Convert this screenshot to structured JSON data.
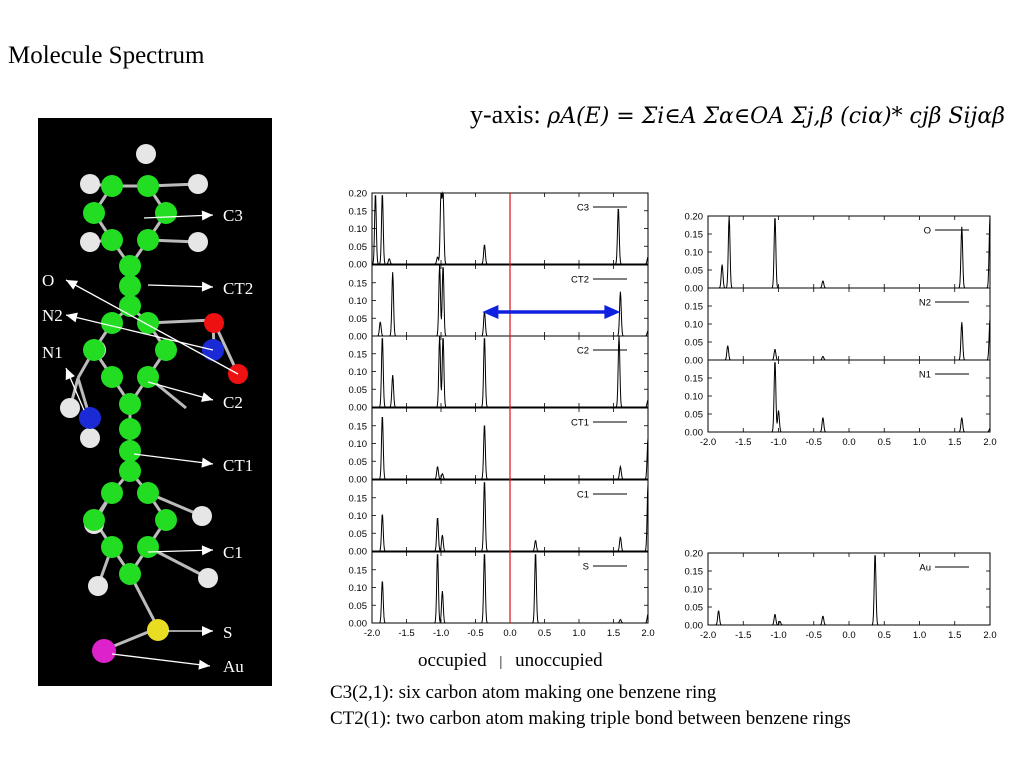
{
  "page_title": "Molecule Spectrum",
  "formula": {
    "label": "y-axis:",
    "expression": "ρA(E) = Σi∈A Σα∈OA Σj,β (ciα)* cjβ Sijαβ"
  },
  "molecule": {
    "labels": [
      "C3",
      "O",
      "CT2",
      "N2",
      "N1",
      "C2",
      "CT1",
      "C1",
      "S",
      "Au"
    ]
  },
  "occupancy": {
    "occupied": "occupied",
    "separator": "|",
    "unoccupied": "unoccupied"
  },
  "captions": [
    "C3(2,1): six carbon atom making one benzene ring",
    "CT2(1): two carbon atom making triple bond between benzene rings"
  ],
  "colors": {
    "carbon": "#22dd22",
    "hydrogen": "#e6e6e6",
    "oxygen": "#ee1111",
    "nitrogen": "#1a2bd6",
    "sulfur": "#e8dd22",
    "gold": "#dd22cc",
    "fermi_line": "#e01010",
    "gap_arrow": "#1020e0"
  },
  "chart_data": {
    "type": "line",
    "xlim": [
      -2.0,
      2.0
    ],
    "x_ticks": [
      "-2.0",
      "-1.5",
      "-1.0",
      "-0.5",
      "0.0",
      "0.5",
      "1.0",
      "1.5",
      "2.0"
    ],
    "ylim": [
      0.0,
      0.2
    ],
    "y_ticks": [
      "0.00",
      "0.05",
      "0.10",
      "0.15",
      "0.20"
    ],
    "fermi_level": 0.0,
    "gap_arrow": [
      -0.4,
      1.6
    ],
    "panels": [
      {
        "name": "C3",
        "column": "left",
        "peaks": [
          [
            -1.95,
            0.2
          ],
          [
            -1.85,
            0.2
          ],
          [
            -1.75,
            0.015
          ],
          [
            -1.05,
            0.02
          ],
          [
            -1.0,
            0.2
          ],
          [
            -0.97,
            0.2
          ],
          [
            -0.37,
            0.055
          ],
          [
            1.57,
            0.16
          ],
          [
            2.0,
            0.02
          ]
        ]
      },
      {
        "name": "CT2",
        "column": "left",
        "peaks": [
          [
            -1.88,
            0.04
          ],
          [
            -1.7,
            0.18
          ],
          [
            -1.02,
            0.2
          ],
          [
            -0.97,
            0.2
          ],
          [
            -0.37,
            0.07
          ],
          [
            1.6,
            0.125
          ],
          [
            2.0,
            0.015
          ]
        ]
      },
      {
        "name": "C2",
        "column": "left",
        "peaks": [
          [
            -1.85,
            0.2
          ],
          [
            -1.7,
            0.09
          ],
          [
            -1.02,
            0.2
          ],
          [
            -0.97,
            0.2
          ],
          [
            -0.37,
            0.2
          ],
          [
            1.58,
            0.2
          ],
          [
            2.0,
            0.02
          ]
        ]
      },
      {
        "name": "CT1",
        "column": "left",
        "peaks": [
          [
            -1.85,
            0.18
          ],
          [
            -1.05,
            0.035
          ],
          [
            -0.98,
            0.015
          ],
          [
            -0.37,
            0.155
          ],
          [
            1.6,
            0.035
          ],
          [
            2.0,
            0.115
          ]
        ]
      },
      {
        "name": "C1",
        "column": "left",
        "peaks": [
          [
            -1.85,
            0.105
          ],
          [
            -1.05,
            0.095
          ],
          [
            -0.98,
            0.045
          ],
          [
            -0.37,
            0.2
          ],
          [
            0.37,
            0.03
          ],
          [
            1.6,
            0.04
          ],
          [
            2.0,
            0.19
          ]
        ]
      },
      {
        "name": "S",
        "column": "left",
        "peaks": [
          [
            -1.85,
            0.12
          ],
          [
            -1.05,
            0.2
          ],
          [
            -0.98,
            0.09
          ],
          [
            -0.37,
            0.2
          ],
          [
            0.37,
            0.2
          ],
          [
            1.6,
            0.01
          ],
          [
            2.0,
            0.025
          ]
        ]
      },
      {
        "name": "O",
        "column": "right",
        "peaks": [
          [
            -1.8,
            0.065
          ],
          [
            -1.7,
            0.2
          ],
          [
            -1.05,
            0.2
          ],
          [
            -0.37,
            0.02
          ],
          [
            1.6,
            0.17
          ],
          [
            2.0,
            0.2
          ]
        ]
      },
      {
        "name": "N2",
        "column": "right",
        "peaks": [
          [
            -1.72,
            0.04
          ],
          [
            -1.05,
            0.03
          ],
          [
            -0.37,
            0.01
          ],
          [
            1.6,
            0.105
          ],
          [
            2.0,
            0.115
          ]
        ]
      },
      {
        "name": "N1",
        "column": "right",
        "peaks": [
          [
            -1.05,
            0.2
          ],
          [
            -1.0,
            0.06
          ],
          [
            -0.37,
            0.04
          ],
          [
            1.6,
            0.04
          ],
          [
            2.0,
            0.01
          ]
        ]
      },
      {
        "name": "Au",
        "column": "right",
        "peaks": [
          [
            -1.85,
            0.04
          ],
          [
            -1.05,
            0.03
          ],
          [
            -0.98,
            0.01
          ],
          [
            -0.37,
            0.025
          ],
          [
            0.37,
            0.2
          ]
        ]
      }
    ]
  }
}
